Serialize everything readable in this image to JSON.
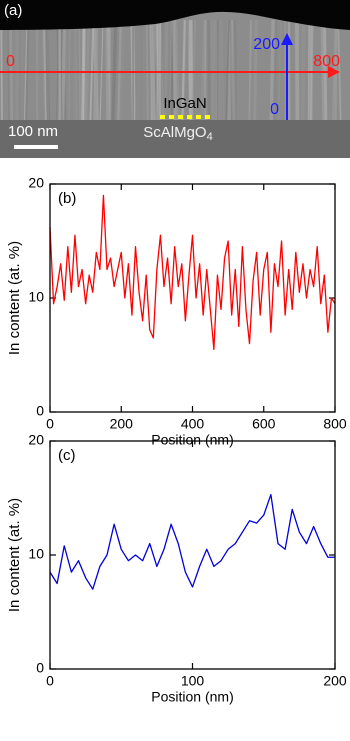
{
  "panel_a": {
    "panel_label": "(a)",
    "h_start": 0,
    "h_end": 800,
    "v_end": 200,
    "v_start": 0,
    "layer_label": "InGaN",
    "substrate_label": {
      "text": "ScAlMgO",
      "subscript": "4"
    },
    "scale_bar": "100 nm"
  },
  "chart_data": [
    {
      "type": "line",
      "panel_label": "(b)",
      "x_label": "Position (nm)",
      "y_label": "In content (at. %)",
      "color": "#ff0000",
      "x": [
        0,
        10,
        20,
        30,
        40,
        50,
        60,
        70,
        80,
        90,
        100,
        110,
        120,
        130,
        140,
        150,
        160,
        170,
        180,
        190,
        200,
        210,
        220,
        230,
        240,
        250,
        260,
        270,
        280,
        290,
        300,
        310,
        320,
        330,
        340,
        350,
        360,
        370,
        380,
        390,
        400,
        410,
        420,
        430,
        440,
        450,
        460,
        470,
        480,
        490,
        500,
        510,
        520,
        530,
        540,
        550,
        560,
        570,
        580,
        590,
        600,
        610,
        620,
        630,
        640,
        650,
        660,
        670,
        680,
        690,
        700,
        710,
        720,
        730,
        740,
        750,
        760,
        770,
        780,
        790,
        800
      ],
      "values": [
        16.2,
        9.5,
        11,
        13,
        9.8,
        14.5,
        10.5,
        15.5,
        11,
        12.5,
        9.5,
        12,
        10.5,
        14,
        12.5,
        19,
        12.5,
        13.5,
        11,
        12.5,
        14,
        10,
        13,
        8.5,
        14.5,
        10.5,
        8,
        12,
        7.2,
        6.5,
        12.5,
        15.5,
        11,
        13.5,
        9.5,
        14.5,
        11,
        13,
        8,
        12,
        15.5,
        10,
        13,
        8.5,
        12.5,
        9,
        5.5,
        12,
        9,
        13.5,
        15,
        8.5,
        12.5,
        7.5,
        14.5,
        9,
        6,
        11.5,
        14,
        8.5,
        12.5,
        14,
        7,
        13,
        11,
        15,
        8.5,
        12.5,
        9,
        14,
        10.5,
        13,
        10,
        12.5,
        11,
        14.5,
        9.5,
        12,
        7,
        10,
        9.5
      ],
      "xlim": [
        0,
        800
      ],
      "xticks": [
        0,
        200,
        400,
        600,
        800
      ],
      "ylim": [
        0,
        20
      ],
      "yticks": [
        0,
        10,
        20
      ]
    },
    {
      "type": "line",
      "panel_label": "(c)",
      "x_label": "Position (nm)",
      "y_label": "In content (at. %)",
      "color": "#0000dd",
      "x": [
        0,
        5,
        10,
        15,
        20,
        25,
        30,
        35,
        40,
        45,
        50,
        55,
        60,
        65,
        70,
        75,
        80,
        85,
        90,
        95,
        100,
        105,
        110,
        115,
        120,
        125,
        130,
        135,
        140,
        145,
        150,
        155,
        160,
        165,
        170,
        175,
        180,
        185,
        190,
        195,
        200
      ],
      "values": [
        8.5,
        7.5,
        10.8,
        8.5,
        9.5,
        8,
        7,
        9,
        10,
        12.7,
        10.5,
        9.5,
        10,
        9.5,
        11,
        9,
        10.5,
        12.7,
        11,
        8.5,
        7.2,
        9,
        10.5,
        9,
        9.5,
        10.5,
        11,
        12,
        13,
        12.8,
        13.5,
        15.3,
        11,
        10.5,
        14,
        12,
        11,
        12.5,
        11,
        9.8,
        9.8
      ],
      "xlim": [
        0,
        200
      ],
      "xticks": [
        0,
        100,
        200
      ],
      "ylim": [
        0,
        20
      ],
      "yticks": [
        0,
        10,
        20
      ]
    }
  ]
}
